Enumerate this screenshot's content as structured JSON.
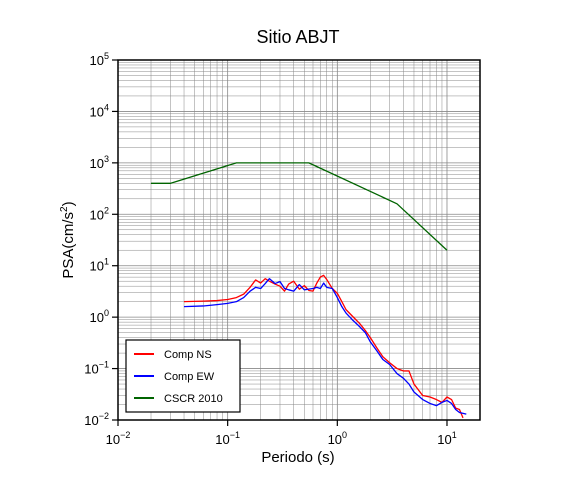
{
  "chart_data": {
    "type": "line",
    "title": "Sitio ABJT",
    "xlabel": "Periodo (s)",
    "ylabel_base": "PSA(cm/s",
    "ylabel_sup": "2",
    "ylabel_close": ")",
    "xscale": "log",
    "yscale": "log",
    "xlim": [
      0.01,
      20
    ],
    "ylim": [
      0.01,
      100000
    ],
    "x_ticks": [
      0.01,
      0.1,
      1,
      10
    ],
    "y_ticks": [
      0.01,
      0.1,
      1,
      10,
      100,
      1000,
      10000,
      100000
    ],
    "x_tick_labels": [
      {
        "base": "10",
        "exp": "−2"
      },
      {
        "base": "10",
        "exp": "−1"
      },
      {
        "base": "10",
        "exp": "0"
      },
      {
        "base": "10",
        "exp": "1"
      }
    ],
    "y_tick_labels": [
      {
        "base": "10",
        "exp": "−2"
      },
      {
        "base": "10",
        "exp": "−1"
      },
      {
        "base": "10",
        "exp": "0"
      },
      {
        "base": "10",
        "exp": "1"
      },
      {
        "base": "10",
        "exp": "2"
      },
      {
        "base": "10",
        "exp": "3"
      },
      {
        "base": "10",
        "exp": "4"
      },
      {
        "base": "10",
        "exp": "5"
      }
    ],
    "grid": true,
    "legend_position": "bottom-left",
    "series": [
      {
        "name": "Comp NS",
        "color": "#ff0000",
        "points": [
          [
            0.04,
            2.0
          ],
          [
            0.06,
            2.05
          ],
          [
            0.08,
            2.1
          ],
          [
            0.1,
            2.2
          ],
          [
            0.12,
            2.4
          ],
          [
            0.14,
            2.8
          ],
          [
            0.16,
            3.8
          ],
          [
            0.18,
            5.3
          ],
          [
            0.2,
            4.6
          ],
          [
            0.22,
            5.6
          ],
          [
            0.24,
            5.0
          ],
          [
            0.27,
            4.4
          ],
          [
            0.3,
            4.0
          ],
          [
            0.33,
            3.2
          ],
          [
            0.36,
            4.4
          ],
          [
            0.4,
            5.0
          ],
          [
            0.45,
            3.5
          ],
          [
            0.5,
            4.1
          ],
          [
            0.55,
            3.3
          ],
          [
            0.6,
            3.2
          ],
          [
            0.65,
            4.6
          ],
          [
            0.7,
            6.0
          ],
          [
            0.75,
            6.5
          ],
          [
            0.8,
            5.4
          ],
          [
            0.9,
            3.6
          ],
          [
            1.0,
            2.9
          ],
          [
            1.1,
            2.0
          ],
          [
            1.2,
            1.4
          ],
          [
            1.4,
            1.0
          ],
          [
            1.6,
            0.75
          ],
          [
            1.8,
            0.55
          ],
          [
            2.0,
            0.4
          ],
          [
            2.3,
            0.25
          ],
          [
            2.6,
            0.17
          ],
          [
            3.0,
            0.13
          ],
          [
            3.5,
            0.1
          ],
          [
            4.0,
            0.09
          ],
          [
            4.5,
            0.09
          ],
          [
            5.0,
            0.05
          ],
          [
            6.0,
            0.03
          ],
          [
            7.0,
            0.028
          ],
          [
            8.0,
            0.025
          ],
          [
            9.0,
            0.022
          ],
          [
            10.0,
            0.028
          ],
          [
            11.0,
            0.025
          ],
          [
            12.0,
            0.017
          ],
          [
            13.0,
            0.016
          ],
          [
            14.0,
            0.011
          ]
        ]
      },
      {
        "name": "Comp EW",
        "color": "#0000ff",
        "points": [
          [
            0.04,
            1.6
          ],
          [
            0.06,
            1.65
          ],
          [
            0.08,
            1.75
          ],
          [
            0.1,
            1.85
          ],
          [
            0.12,
            2.0
          ],
          [
            0.14,
            2.4
          ],
          [
            0.16,
            3.2
          ],
          [
            0.18,
            3.8
          ],
          [
            0.2,
            3.6
          ],
          [
            0.22,
            4.5
          ],
          [
            0.24,
            5.6
          ],
          [
            0.27,
            4.5
          ],
          [
            0.3,
            4.9
          ],
          [
            0.33,
            3.6
          ],
          [
            0.36,
            3.4
          ],
          [
            0.4,
            3.2
          ],
          [
            0.45,
            4.3
          ],
          [
            0.5,
            3.4
          ],
          [
            0.55,
            3.5
          ],
          [
            0.6,
            3.6
          ],
          [
            0.65,
            3.8
          ],
          [
            0.7,
            3.6
          ],
          [
            0.75,
            4.6
          ],
          [
            0.8,
            3.8
          ],
          [
            0.9,
            3.6
          ],
          [
            1.0,
            2.4
          ],
          [
            1.1,
            1.6
          ],
          [
            1.2,
            1.2
          ],
          [
            1.4,
            0.85
          ],
          [
            1.6,
            0.65
          ],
          [
            1.8,
            0.5
          ],
          [
            2.0,
            0.33
          ],
          [
            2.3,
            0.22
          ],
          [
            2.6,
            0.15
          ],
          [
            3.0,
            0.12
          ],
          [
            3.5,
            0.08
          ],
          [
            4.0,
            0.065
          ],
          [
            4.5,
            0.05
          ],
          [
            5.0,
            0.035
          ],
          [
            6.0,
            0.025
          ],
          [
            7.0,
            0.021
          ],
          [
            8.0,
            0.019
          ],
          [
            9.0,
            0.022
          ],
          [
            10.0,
            0.024
          ],
          [
            11.0,
            0.021
          ],
          [
            12.0,
            0.016
          ],
          [
            13.0,
            0.014
          ],
          [
            15.0,
            0.013
          ]
        ]
      },
      {
        "name": "CSCR 2010",
        "color": "#006400",
        "points": [
          [
            0.02,
            400
          ],
          [
            0.03,
            400
          ],
          [
            0.12,
            1000
          ],
          [
            0.55,
            1000
          ],
          [
            3.5,
            160
          ],
          [
            10.0,
            20
          ]
        ]
      }
    ]
  }
}
